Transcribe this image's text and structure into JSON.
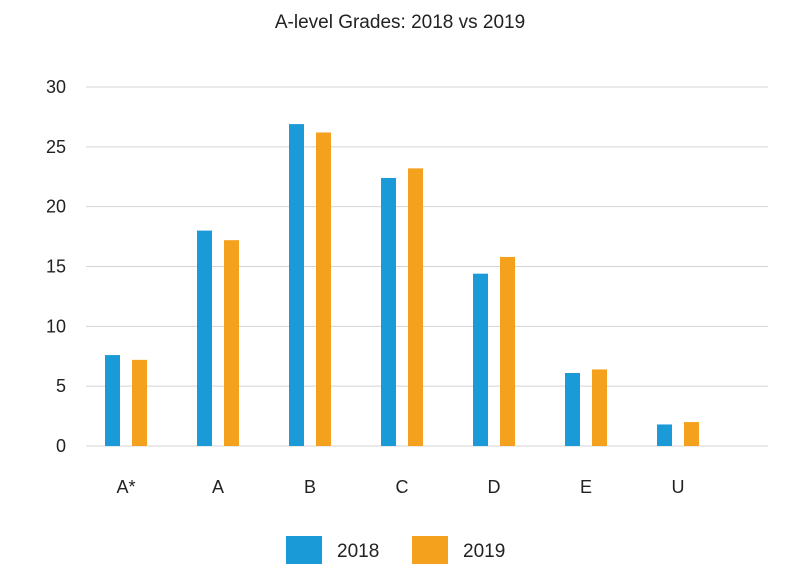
{
  "chart_data": {
    "type": "bar",
    "title": "A-level Grades: 2018 vs 2019",
    "xlabel": "",
    "ylabel": "",
    "categories": [
      "A*",
      "A",
      "B",
      "C",
      "D",
      "E",
      "U"
    ],
    "series": [
      {
        "name": "2018",
        "color": "#1a9bd7",
        "values": [
          7.6,
          18.0,
          26.9,
          22.4,
          14.4,
          6.1,
          1.8
        ]
      },
      {
        "name": "2019",
        "color": "#f4a21e",
        "values": [
          7.2,
          17.2,
          26.2,
          23.2,
          15.8,
          6.4,
          2.0
        ]
      }
    ],
    "ylim": [
      0,
      30
    ],
    "yticks": [
      0,
      5,
      10,
      15,
      20,
      25,
      30
    ],
    "grid": true,
    "legend": "bottom-center"
  }
}
